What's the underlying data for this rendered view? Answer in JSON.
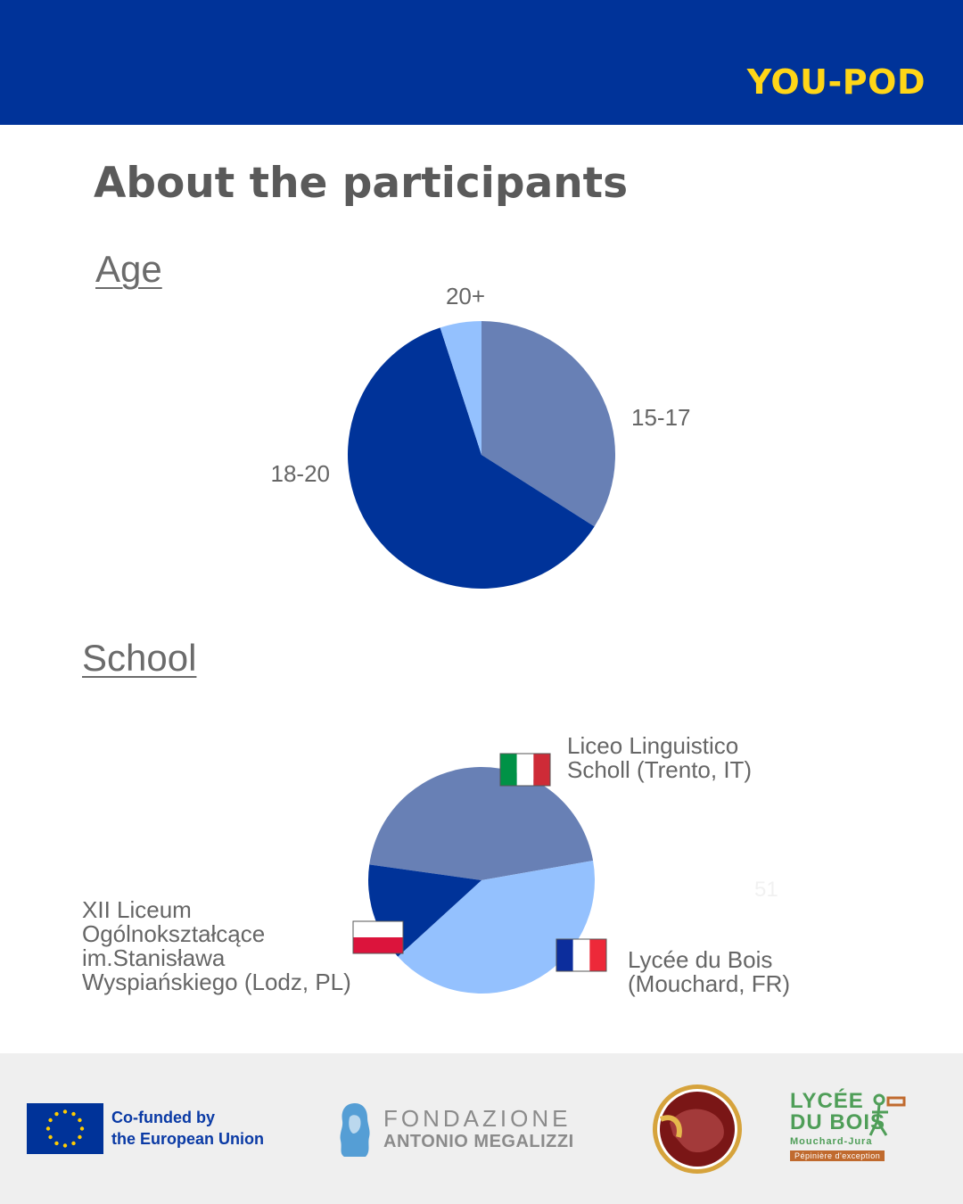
{
  "header": {
    "brand": "YOU-POD",
    "background": "#003399",
    "brand_color": "#ffd617"
  },
  "page_title": "About the participants",
  "chart_data": [
    {
      "type": "pie",
      "section_title": "Age",
      "categories": [
        "15-17",
        "18-20",
        "20+"
      ],
      "values": [
        34,
        61,
        5
      ],
      "colors": [
        "#6880b5",
        "#003399",
        "#94c1fe"
      ]
    },
    {
      "type": "pie",
      "section_title": "School",
      "categories": [
        "Liceo Linguistico Scholl (Trento, IT)",
        "Lycée du Bois (Mouchard, FR)",
        "XII Liceum Ogólnokształcące im.Stanisława Wyspiańskiego (Lodz, PL)"
      ],
      "label_lines": [
        [
          "Liceo Linguistico",
          "Scholl (Trento, IT)"
        ],
        [
          "Lycée du Bois",
          "(Mouchard, FR)"
        ],
        [
          "XII Liceum",
          "Ogólnokształcące",
          "im.Stanisława",
          "Wyspiańskiego (Lodz, PL)"
        ]
      ],
      "values": [
        45,
        41,
        14
      ],
      "colors": [
        "#6880b5",
        "#94c1fe",
        "#003399"
      ],
      "flags": [
        "italy-flag",
        "france-flag",
        "poland-flag"
      ],
      "stray_label": "51"
    }
  ],
  "footer": {
    "eu_line1": "Co-funded by",
    "eu_line2": "the European Union",
    "fondazione_line1": "FONDAZIONE",
    "fondazione_line2": "ANTONIO MEGALIZZI",
    "lycee_line1": "LYCÉE",
    "lycee_line2": "DU BOIS",
    "lycee_line3": "Mouchard-Jura",
    "lycee_line4": "Pépinière d'exception"
  }
}
